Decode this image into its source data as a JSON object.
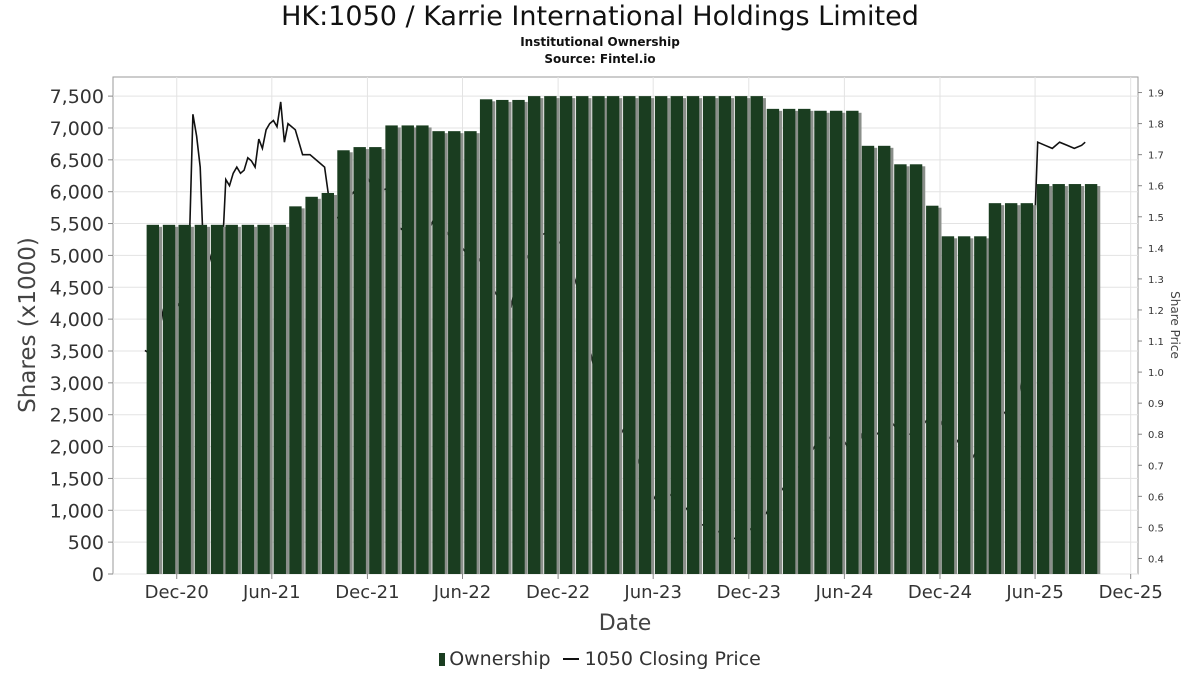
{
  "chart_data": {
    "type": "bar",
    "title": "HK:1050 / Karrie International Holdings Limited",
    "subtitle": "Institutional Ownership",
    "source": "Source: Fintel.io",
    "xlabel": "Date",
    "ylabel": "Shares (x1000)",
    "y2label": "Share Price",
    "ylim": [
      0,
      7800
    ],
    "y2lim": [
      0.35,
      1.95
    ],
    "xlim": [
      "2020-08-01",
      "2025-12-15"
    ],
    "grid": true,
    "legend_position": "bottom",
    "yticks": [
      "0",
      "500",
      "1,000",
      "1,500",
      "2,000",
      "2,500",
      "3,000",
      "3,500",
      "4,000",
      "4,500",
      "5,000",
      "5,500",
      "6,000",
      "6,500",
      "7,000",
      "7,500"
    ],
    "ytick_values": [
      0,
      500,
      1000,
      1500,
      2000,
      2500,
      3000,
      3500,
      4000,
      4500,
      5000,
      5500,
      6000,
      6500,
      7000,
      7500
    ],
    "y2ticks": [
      "0.4",
      "0.5",
      "0.6",
      "0.7",
      "0.8",
      "0.9",
      "1.0",
      "1.1",
      "1.2",
      "1.3",
      "1.4",
      "1.5",
      "1.6",
      "1.7",
      "1.8",
      "1.9"
    ],
    "y2tick_values": [
      0.4,
      0.5,
      0.6,
      0.7,
      0.8,
      0.9,
      1.0,
      1.1,
      1.2,
      1.3,
      1.4,
      1.5,
      1.6,
      1.7,
      1.8,
      1.9
    ],
    "xticks": [
      "Dec-20",
      "Jun-21",
      "Dec-21",
      "Jun-22",
      "Dec-22",
      "Jun-23",
      "Dec-23",
      "Jun-24",
      "Dec-24",
      "Jun-25",
      "Dec-25"
    ],
    "xtick_dates": [
      "2020-12-01",
      "2021-06-01",
      "2021-12-01",
      "2022-06-01",
      "2022-12-01",
      "2023-06-01",
      "2023-12-01",
      "2024-06-01",
      "2024-12-01",
      "2025-06-01",
      "2025-12-01"
    ],
    "series": [
      {
        "name": "Ownership",
        "color": "#1a3d20",
        "dates": [
          "2020-10-01",
          "2020-11-01",
          "2020-12-01",
          "2021-01-01",
          "2021-02-01",
          "2021-03-01",
          "2021-04-01",
          "2021-05-01",
          "2021-06-01",
          "2021-07-01",
          "2021-08-01",
          "2021-09-01",
          "2021-10-01",
          "2021-11-01",
          "2021-12-01",
          "2022-01-01",
          "2022-02-01",
          "2022-03-01",
          "2022-04-01",
          "2022-05-01",
          "2022-06-01",
          "2022-07-01",
          "2022-08-01",
          "2022-09-01",
          "2022-10-01",
          "2022-11-01",
          "2022-12-01",
          "2023-01-01",
          "2023-02-01",
          "2023-03-01",
          "2023-04-01",
          "2023-05-01",
          "2023-06-01",
          "2023-07-01",
          "2023-08-01",
          "2023-09-01",
          "2023-10-01",
          "2023-11-01",
          "2023-12-01",
          "2024-01-01",
          "2024-02-01",
          "2024-03-01",
          "2024-04-01",
          "2024-05-01",
          "2024-06-01",
          "2024-07-01",
          "2024-08-01",
          "2024-09-01",
          "2024-10-01",
          "2024-11-01",
          "2024-12-01",
          "2025-01-01",
          "2025-02-01",
          "2025-03-01",
          "2025-04-01",
          "2025-05-01",
          "2025-06-01",
          "2025-07-01",
          "2025-08-01",
          "2025-09-01"
        ],
        "values": [
          5480,
          5480,
          5480,
          5480,
          5480,
          5480,
          5480,
          5480,
          5480,
          5770,
          5920,
          5980,
          6650,
          6700,
          6700,
          7040,
          7040,
          7040,
          6950,
          6950,
          6950,
          7450,
          7440,
          7440,
          7500,
          7500,
          7500,
          7500,
          7500,
          7500,
          7500,
          7500,
          7500,
          7500,
          7500,
          7500,
          7500,
          7500,
          7500,
          7300,
          7300,
          7300,
          7270,
          7270,
          7270,
          6720,
          6720,
          6430,
          6430,
          5780,
          5300,
          5300,
          5300,
          5820,
          5820,
          5820,
          6120,
          6120,
          6120,
          6120
        ]
      },
      {
        "name": "1050 Closing Price",
        "color": "#111111",
        "type": "line",
        "axis": "right",
        "dates": [
          "2020-10-01",
          "2020-10-20",
          "2020-11-05",
          "2020-11-20",
          "2020-12-05",
          "2020-12-20",
          "2021-01-01",
          "2021-01-08",
          "2021-01-15",
          "2021-01-22",
          "2021-01-29",
          "2021-02-05",
          "2021-02-12",
          "2021-02-19",
          "2021-02-26",
          "2021-03-05",
          "2021-03-12",
          "2021-03-19",
          "2021-03-26",
          "2021-04-02",
          "2021-04-09",
          "2021-04-16",
          "2021-04-23",
          "2021-04-30",
          "2021-05-07",
          "2021-05-14",
          "2021-05-21",
          "2021-05-28",
          "2021-06-04",
          "2021-06-11",
          "2021-06-18",
          "2021-06-25",
          "2021-07-02",
          "2021-07-16",
          "2021-07-30",
          "2021-08-13",
          "2021-08-27",
          "2021-09-10",
          "2021-09-24",
          "2021-10-08",
          "2021-10-22",
          "2021-11-05",
          "2021-11-19",
          "2021-12-03",
          "2021-12-17",
          "2022-01-07",
          "2022-01-21",
          "2022-02-04",
          "2022-02-18",
          "2022-03-04",
          "2022-03-18",
          "2022-04-01",
          "2022-04-15",
          "2022-04-29",
          "2022-05-13",
          "2022-05-27",
          "2022-06-10",
          "2022-06-24",
          "2022-07-08",
          "2022-07-22",
          "2022-08-05",
          "2022-08-19",
          "2022-09-02",
          "2022-09-16",
          "2022-09-30",
          "2022-10-14",
          "2022-10-28",
          "2022-11-11",
          "2022-11-25",
          "2022-12-09",
          "2022-12-23",
          "2023-01-06",
          "2023-01-20",
          "2023-02-03",
          "2023-02-17",
          "2023-03-03",
          "2023-03-17",
          "2023-03-31",
          "2023-04-14",
          "2023-04-28",
          "2023-05-12",
          "2023-05-26",
          "2023-06-09",
          "2023-06-23",
          "2023-07-07",
          "2023-07-21",
          "2023-08-04",
          "2023-08-18",
          "2023-09-01",
          "2023-09-15",
          "2023-09-29",
          "2023-10-13",
          "2023-10-27",
          "2023-11-10",
          "2023-11-24",
          "2023-12-08",
          "2023-12-22",
          "2024-01-05",
          "2024-01-19",
          "2024-02-02",
          "2024-02-16",
          "2024-03-01",
          "2024-03-15",
          "2024-03-29",
          "2024-04-12",
          "2024-04-26",
          "2024-05-10",
          "2024-05-24",
          "2024-06-07",
          "2024-06-21",
          "2024-07-05",
          "2024-07-19",
          "2024-08-02",
          "2024-08-16",
          "2024-08-30",
          "2024-09-13",
          "2024-09-27",
          "2024-10-11",
          "2024-10-25",
          "2024-11-08",
          "2024-11-22",
          "2024-12-06",
          "2024-12-20",
          "2025-01-03",
          "2025-01-17",
          "2025-01-31",
          "2025-02-14",
          "2025-02-28",
          "2025-03-14",
          "2025-03-28",
          "2025-04-11",
          "2025-04-25",
          "2025-05-09",
          "2025-05-23",
          "2025-06-06",
          "2025-06-20",
          "2025-07-04",
          "2025-07-18",
          "2025-08-01",
          "2025-08-15",
          "2025-08-29",
          "2025-09-05"
        ],
        "values": [
          1.07,
          1.05,
          1.2,
          1.18,
          1.22,
          1.1,
          1.83,
          1.76,
          1.66,
          1.35,
          1.4,
          1.36,
          1.38,
          1.37,
          1.38,
          1.62,
          1.6,
          1.64,
          1.66,
          1.64,
          1.65,
          1.69,
          1.68,
          1.66,
          1.75,
          1.72,
          1.78,
          1.8,
          1.81,
          1.79,
          1.87,
          1.74,
          1.8,
          1.78,
          1.7,
          1.7,
          1.68,
          1.66,
          1.49,
          1.5,
          1.55,
          1.58,
          1.56,
          1.62,
          1.58,
          1.59,
          1.48,
          1.46,
          1.49,
          1.5,
          1.48,
          1.47,
          1.52,
          1.46,
          1.42,
          1.41,
          1.38,
          1.39,
          1.35,
          1.29,
          1.25,
          1.22,
          1.21,
          1.32,
          1.36,
          1.4,
          1.44,
          1.45,
          1.43,
          1.41,
          1.35,
          1.28,
          1.15,
          1.05,
          0.95,
          0.88,
          0.82,
          0.8,
          0.84,
          0.74,
          0.68,
          0.62,
          0.58,
          0.62,
          0.6,
          0.58,
          0.56,
          0.53,
          0.51,
          0.5,
          0.49,
          0.48,
          0.47,
          0.46,
          0.48,
          0.5,
          0.52,
          0.55,
          0.6,
          0.62,
          0.65,
          0.7,
          0.68,
          0.74,
          0.78,
          0.8,
          0.78,
          0.8,
          0.76,
          0.72,
          0.8,
          0.85,
          0.8,
          0.82,
          0.84,
          0.81,
          0.8,
          0.8,
          0.82,
          0.85,
          0.88,
          0.83,
          0.8,
          0.78,
          0.74,
          0.72,
          0.76,
          0.8,
          0.84,
          0.86,
          0.88,
          0.9,
          0.98,
          1.1,
          1.74,
          1.73,
          1.72,
          1.74,
          1.73,
          1.72,
          1.73,
          1.74
        ]
      }
    ]
  },
  "legend": {
    "ownership_label": "Ownership",
    "price_label": "1050 Closing Price"
  }
}
